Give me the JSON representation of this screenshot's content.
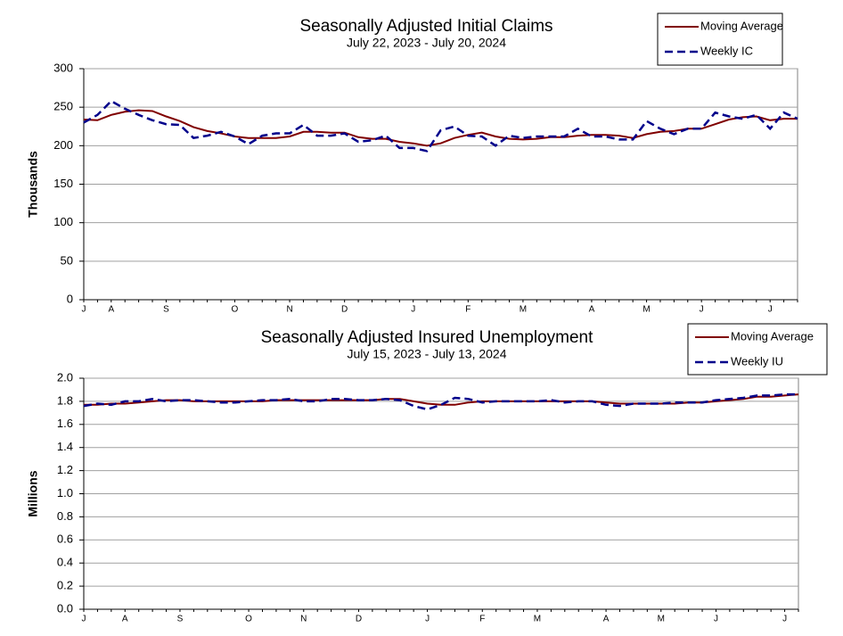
{
  "chart_data": [
    {
      "type": "line",
      "title": "Seasonally Adjusted Initial Claims",
      "subtitle": "July 22, 2023 - July 20, 2024",
      "y_label": "Thousands",
      "categories": [
        "J",
        null,
        "A",
        null,
        null,
        null,
        "S",
        null,
        null,
        null,
        null,
        "O",
        null,
        null,
        null,
        "N",
        null,
        null,
        null,
        "D",
        null,
        null,
        null,
        null,
        "J",
        null,
        null,
        null,
        "F",
        null,
        null,
        null,
        "M",
        null,
        null,
        null,
        null,
        "A",
        null,
        null,
        null,
        "M",
        null,
        null,
        null,
        "J",
        null,
        null,
        null,
        null,
        "J",
        null,
        null
      ],
      "series": [
        {
          "name": "Moving Average",
          "color": "#800000",
          "style": "solid",
          "values": [
            234,
            233,
            240,
            244,
            246,
            245,
            238,
            232,
            224,
            219,
            216,
            212,
            210,
            210,
            210,
            212,
            218,
            218,
            217,
            217,
            211,
            209,
            209,
            205,
            203,
            200,
            203,
            210,
            214,
            217,
            212,
            209,
            208,
            209,
            211,
            211,
            213,
            214,
            214,
            213,
            210,
            215,
            218,
            219,
            222,
            222,
            228,
            234,
            237,
            238,
            233,
            235,
            235
          ]
        },
        {
          "name": "Weekly IC",
          "color": "#00008b",
          "style": "dashed",
          "values": [
            230,
            240,
            258,
            248,
            240,
            233,
            228,
            227,
            210,
            213,
            218,
            212,
            202,
            213,
            216,
            216,
            227,
            213,
            213,
            216,
            205,
            207,
            213,
            197,
            197,
            193,
            220,
            225,
            213,
            212,
            200,
            213,
            210,
            212,
            212,
            212,
            222,
            212,
            212,
            208,
            208,
            232,
            222,
            215,
            222,
            222,
            243,
            238,
            235,
            240,
            222,
            243,
            235
          ]
        }
      ],
      "ylim": [
        0,
        300
      ],
      "yticks": [
        0,
        50,
        100,
        150,
        200,
        250,
        300
      ],
      "grid": true,
      "legend": "top-right"
    },
    {
      "type": "line",
      "title": "Seasonally Adjusted Insured Unemployment",
      "subtitle": "July 15, 2023 - July 13, 2024",
      "y_label": "Millions",
      "categories": [
        "J",
        null,
        null,
        "A",
        null,
        null,
        null,
        "S",
        null,
        null,
        null,
        null,
        "O",
        null,
        null,
        null,
        "N",
        null,
        null,
        null,
        "D",
        null,
        null,
        null,
        null,
        "J",
        null,
        null,
        null,
        "F",
        null,
        null,
        null,
        "M",
        null,
        null,
        null,
        null,
        "A",
        null,
        null,
        null,
        "M",
        null,
        null,
        null,
        "J",
        null,
        null,
        null,
        null,
        "J",
        null
      ],
      "series": [
        {
          "name": "Moving Average",
          "color": "#800000",
          "style": "solid",
          "values": [
            1.77,
            1.77,
            1.78,
            1.78,
            1.79,
            1.8,
            1.81,
            1.81,
            1.8,
            1.8,
            1.8,
            1.8,
            1.8,
            1.8,
            1.81,
            1.81,
            1.81,
            1.81,
            1.81,
            1.81,
            1.81,
            1.81,
            1.82,
            1.82,
            1.8,
            1.78,
            1.77,
            1.77,
            1.79,
            1.8,
            1.8,
            1.8,
            1.8,
            1.8,
            1.8,
            1.8,
            1.8,
            1.8,
            1.79,
            1.78,
            1.78,
            1.78,
            1.78,
            1.78,
            1.79,
            1.79,
            1.8,
            1.81,
            1.82,
            1.84,
            1.84,
            1.85,
            1.86
          ]
        },
        {
          "name": "Weekly IU",
          "color": "#00008b",
          "style": "dashed",
          "values": [
            1.76,
            1.78,
            1.77,
            1.8,
            1.8,
            1.82,
            1.8,
            1.81,
            1.81,
            1.8,
            1.79,
            1.79,
            1.8,
            1.81,
            1.81,
            1.82,
            1.8,
            1.8,
            1.82,
            1.82,
            1.81,
            1.81,
            1.82,
            1.81,
            1.76,
            1.73,
            1.77,
            1.83,
            1.82,
            1.79,
            1.8,
            1.8,
            1.8,
            1.8,
            1.81,
            1.79,
            1.8,
            1.8,
            1.77,
            1.76,
            1.78,
            1.78,
            1.78,
            1.79,
            1.79,
            1.79,
            1.81,
            1.82,
            1.83,
            1.85,
            1.85,
            1.86,
            1.86
          ]
        }
      ],
      "ylim": [
        0,
        2.0
      ],
      "yticks": [
        {
          "value": 0,
          "label": "0.0"
        },
        0.2,
        0.4,
        0.6,
        0.8,
        {
          "value": 1,
          "label": "1.0"
        },
        1.2,
        1.4,
        1.6,
        1.8,
        {
          "value": 2,
          "label": "2.0"
        }
      ],
      "grid": true,
      "legend": "top-right"
    }
  ]
}
